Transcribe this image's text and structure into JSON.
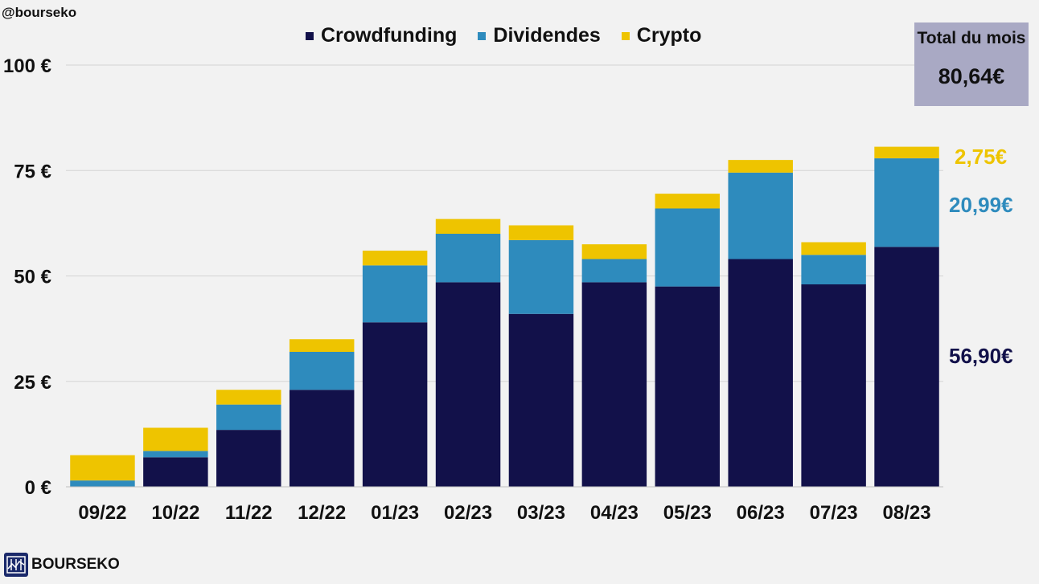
{
  "header": {
    "handle": "@bourseko"
  },
  "colors": {
    "crowdfunding": "#12114a",
    "dividendes": "#2e8bbd",
    "crypto": "#eec400",
    "total_box": "#a9a9c4"
  },
  "chart_data": {
    "type": "bar",
    "stacked": true,
    "categories": [
      "09/22",
      "10/22",
      "11/22",
      "12/22",
      "01/23",
      "02/23",
      "03/23",
      "04/23",
      "05/23",
      "06/23",
      "07/23",
      "08/23"
    ],
    "series": [
      {
        "name": "Crowdfunding",
        "values": [
          0,
          7,
          13.5,
          23,
          39,
          48.5,
          41,
          48.5,
          47.5,
          54,
          48,
          56.9
        ]
      },
      {
        "name": "Dividendes",
        "values": [
          1.5,
          1.5,
          6,
          9,
          13.5,
          11.5,
          17.5,
          5.5,
          18.5,
          20.5,
          7,
          20.99
        ]
      },
      {
        "name": "Crypto",
        "values": [
          6,
          5.5,
          3.5,
          3,
          3.5,
          3.5,
          3.5,
          3.5,
          3.5,
          3,
          3,
          2.75
        ]
      }
    ],
    "y_ticks": [
      "0 €",
      "25 €",
      "50 €",
      "75 €",
      "100 €"
    ],
    "y_tick_values": [
      0,
      25,
      50,
      75,
      100
    ],
    "ylim": [
      0,
      100
    ],
    "legend_position": "top-center",
    "grid": true
  },
  "total_box": {
    "title": "Total du mois",
    "value": "80,64€"
  },
  "value_labels": {
    "crypto": "2,75€",
    "dividendes": "20,99€",
    "crowdfunding": "56,90€"
  },
  "brand": {
    "name": "BOURSEKO"
  }
}
